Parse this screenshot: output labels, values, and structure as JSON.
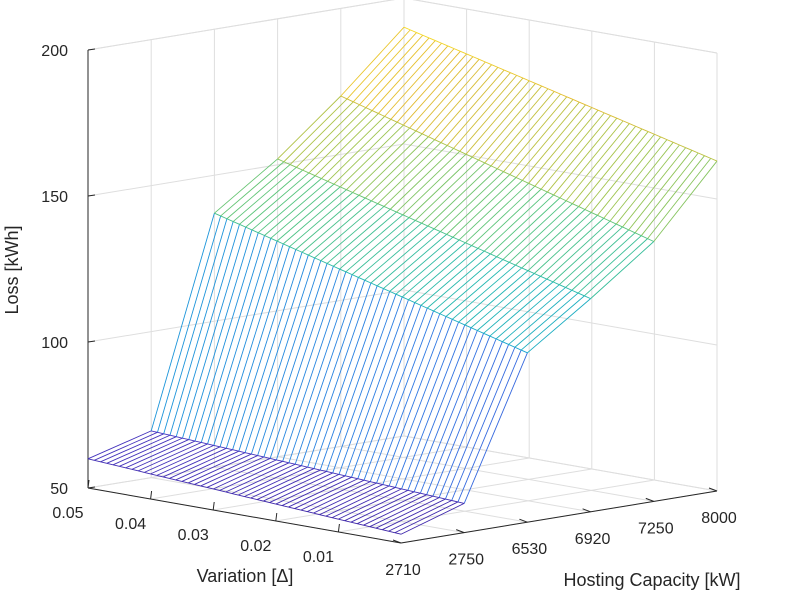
{
  "chart_data": {
    "type": "surface",
    "xlabel": "Hosting Capacity [kW]",
    "ylabel": "Variation [Δ]",
    "zlabel": "Loss [kWh]",
    "x_categories": [
      "2710",
      "2750",
      "6530",
      "6920",
      "7250",
      "8000"
    ],
    "y_ticks": [
      "0.05",
      "0.04",
      "0.03",
      "0.02",
      "0.01"
    ],
    "z_ticks": [
      "50",
      "100",
      "150",
      "200"
    ],
    "zlim": [
      50,
      200
    ],
    "grid": true,
    "colormap": "parula",
    "y_range": [
      0.0,
      0.05
    ],
    "y_samples": 50,
    "surface_levels_kwh": [
      {
        "x": "2710",
        "loss_high_var": 60,
        "loss_low_var": 53
      },
      {
        "x": "2750",
        "loss_high_var": 66,
        "loss_low_var": 60
      },
      {
        "x": "6530",
        "loss_high_var": 137,
        "loss_low_var": 108
      },
      {
        "x": "6920",
        "loss_high_var": 152,
        "loss_low_var": 123
      },
      {
        "x": "7250",
        "loss_high_var": 170,
        "loss_low_var": 139
      },
      {
        "x": "8000",
        "loss_high_var": 190,
        "loss_low_var": 163
      }
    ],
    "colors": {
      "axis": "#262626",
      "grid": "#dedede",
      "colormap_stops": [
        "#3e26a8",
        "#4a42d4",
        "#2e7ae3",
        "#15a0d6",
        "#22b8b0",
        "#53c47e",
        "#a5c44a",
        "#e3bb2f",
        "#f9e023"
      ]
    }
  }
}
